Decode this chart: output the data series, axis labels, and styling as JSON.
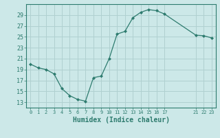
{
  "x": [
    0,
    1,
    2,
    3,
    4,
    5,
    6,
    7,
    8,
    9,
    10,
    11,
    12,
    13,
    14,
    15,
    16,
    17,
    21,
    22,
    23
  ],
  "y": [
    20.0,
    19.3,
    19.0,
    18.2,
    15.5,
    14.2,
    13.5,
    13.2,
    17.5,
    17.8,
    21.0,
    25.5,
    26.0,
    28.5,
    29.5,
    30.0,
    29.8,
    29.2,
    25.3,
    25.2,
    24.8
  ],
  "title": "",
  "xlabel": "Humidex (Indice chaleur)",
  "ylabel": "",
  "xlim": [
    -0.5,
    23.5
  ],
  "ylim": [
    12,
    31
  ],
  "yticks": [
    13,
    15,
    17,
    19,
    21,
    23,
    25,
    27,
    29
  ],
  "xticks": [
    0,
    1,
    2,
    3,
    4,
    5,
    6,
    7,
    8,
    9,
    10,
    11,
    12,
    13,
    14,
    15,
    16,
    17,
    21,
    22,
    23
  ],
  "line_color": "#2d7b6e",
  "marker_color": "#2d7b6e",
  "bg_color": "#cce8e8",
  "grid_color": "#b0d0d0",
  "axis_color": "#2d7b6e",
  "tick_color": "#2d7b6e",
  "label_color": "#2d7b6e",
  "fig_bg": "#cce8e8"
}
